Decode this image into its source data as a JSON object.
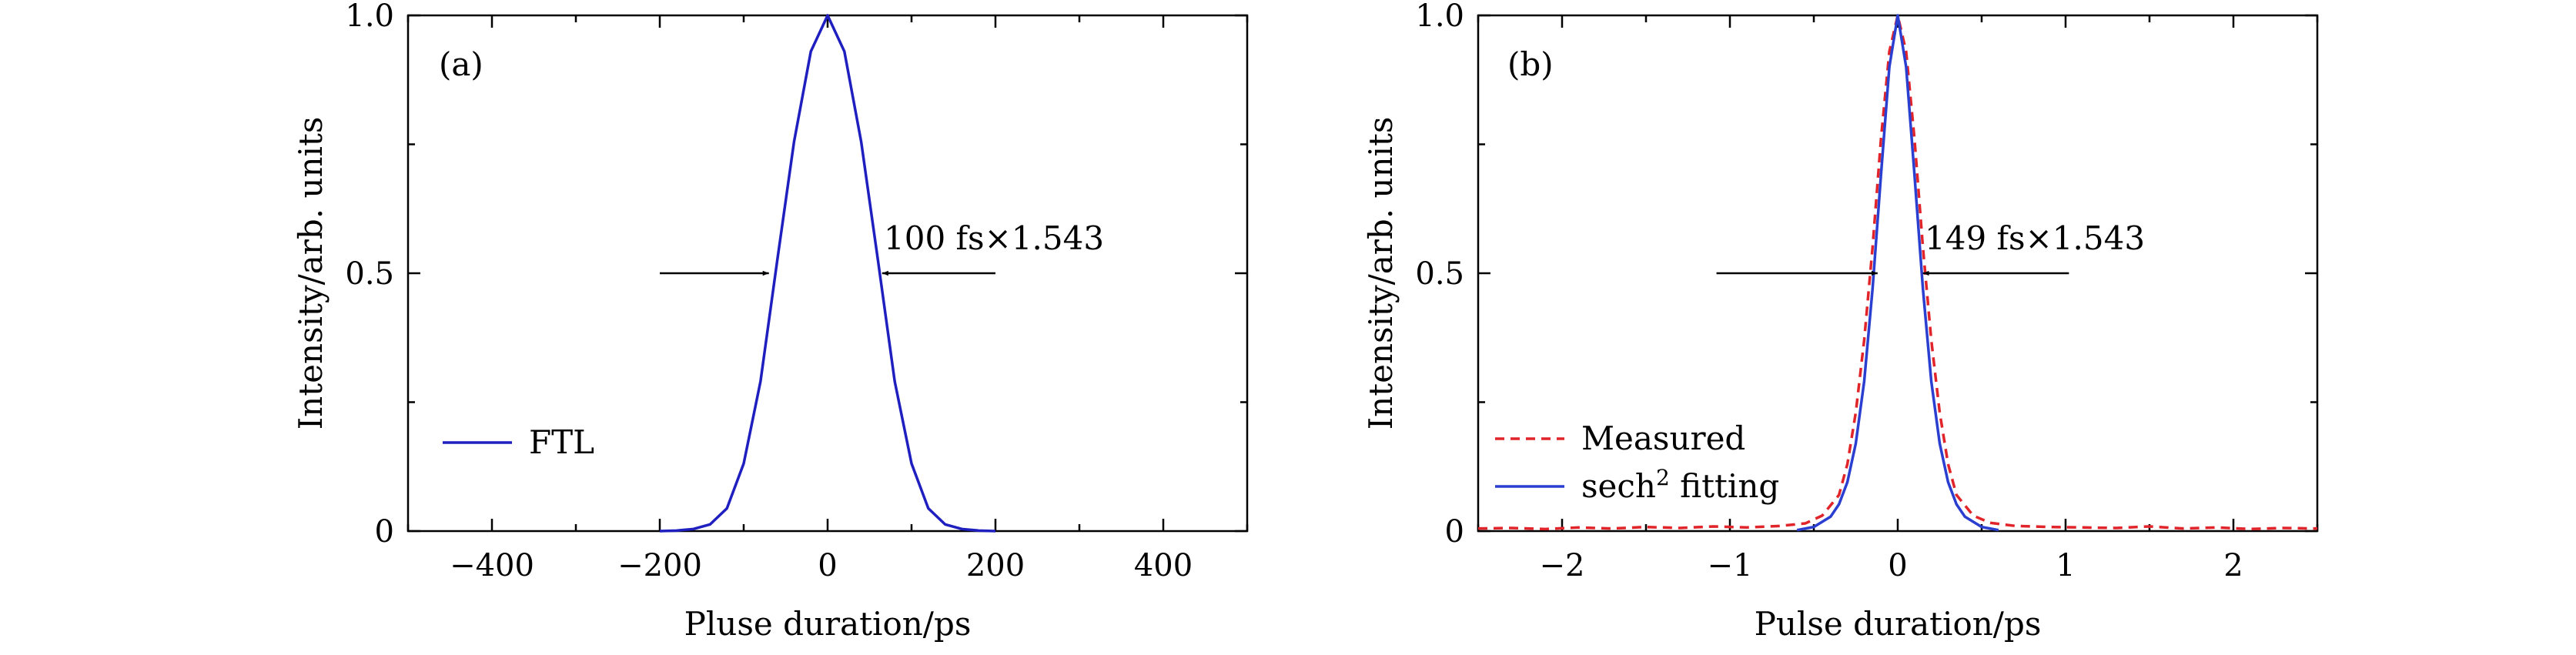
{
  "colors": {
    "axis": "#000000",
    "ftl": "#1f1fbf",
    "measured": "#e0242a",
    "fit": "#2a3fd0"
  },
  "chart_data": [
    {
      "type": "line",
      "panel_label": "(a)",
      "xlabel": "Pluse duration/ps",
      "ylabel": "Intensity/arb. units",
      "xlim": [
        -500,
        500
      ],
      "ylim": [
        0,
        1.0
      ],
      "xticks": [
        -400,
        -200,
        0,
        200,
        400
      ],
      "xtick_labels": [
        "−400",
        "−200",
        "0",
        "200",
        "400"
      ],
      "yticks": [
        0,
        0.5,
        1.0
      ],
      "ytick_labels": [
        "0",
        "0.5",
        "1.0"
      ],
      "annotation": {
        "text": "100 fs×1.543",
        "y": 0.5,
        "arrow_left_x": [
          -200,
          -70
        ],
        "arrow_right_x": [
          200,
          65
        ]
      },
      "legend": {
        "position": "lower-left",
        "entries": [
          "FTL"
        ]
      },
      "series": [
        {
          "name": "FTL",
          "style": "solid",
          "x": [
            -200,
            -180,
            -160,
            -140,
            -120,
            -100,
            -80,
            -60,
            -40,
            -20,
            0,
            20,
            40,
            60,
            80,
            100,
            120,
            140,
            160,
            180,
            200
          ],
          "y": [
            0.0,
            0.001,
            0.004,
            0.013,
            0.044,
            0.131,
            0.29,
            0.525,
            0.755,
            0.93,
            1.0,
            0.93,
            0.755,
            0.525,
            0.29,
            0.131,
            0.044,
            0.013,
            0.004,
            0.001,
            0.0
          ]
        }
      ]
    },
    {
      "type": "line",
      "panel_label": "(b)",
      "xlabel": "Pulse duration/ps",
      "ylabel": "Intensity/arb. units",
      "xlim": [
        -2.5,
        2.5
      ],
      "ylim": [
        0,
        1.0
      ],
      "xticks": [
        -2,
        -1,
        0,
        1,
        2
      ],
      "xtick_labels": [
        "−2",
        "−1",
        "0",
        "1",
        "2"
      ],
      "yticks": [
        0,
        0.5,
        1.0
      ],
      "ytick_labels": [
        "0",
        "0.5",
        "1.0"
      ],
      "annotation": {
        "text": "149 fs×1.543",
        "y": 0.5,
        "arrow_left_x": [
          -1.08,
          -0.12
        ],
        "arrow_right_x": [
          1.02,
          0.15
        ]
      },
      "legend": {
        "position": "lower-left",
        "entries": [
          "Measured",
          "sech",
          "2",
          " fitting"
        ]
      },
      "series": [
        {
          "name": "Measured",
          "style": "dashed",
          "x": [
            -2.5,
            -2.3,
            -2.1,
            -1.9,
            -1.7,
            -1.5,
            -1.3,
            -1.1,
            -0.9,
            -0.7,
            -0.55,
            -0.45,
            -0.35,
            -0.3,
            -0.25,
            -0.2,
            -0.15,
            -0.1,
            -0.05,
            0,
            0.05,
            0.1,
            0.15,
            0.2,
            0.25,
            0.3,
            0.35,
            0.45,
            0.55,
            0.7,
            0.9,
            1.1,
            1.3,
            1.5,
            1.7,
            1.9,
            2.1,
            2.3,
            2.5
          ],
          "y": [
            0.005,
            0.006,
            0.004,
            0.007,
            0.005,
            0.008,
            0.006,
            0.009,
            0.007,
            0.01,
            0.015,
            0.03,
            0.07,
            0.13,
            0.23,
            0.37,
            0.55,
            0.76,
            0.93,
            1.0,
            0.93,
            0.76,
            0.55,
            0.37,
            0.23,
            0.13,
            0.07,
            0.03,
            0.016,
            0.01,
            0.008,
            0.007,
            0.006,
            0.009,
            0.005,
            0.007,
            0.004,
            0.006,
            0.005
          ]
        },
        {
          "name": "sech2 fitting",
          "style": "solid",
          "x": [
            -0.6,
            -0.5,
            -0.4,
            -0.35,
            -0.3,
            -0.25,
            -0.2,
            -0.15,
            -0.1,
            -0.05,
            0,
            0.05,
            0.1,
            0.15,
            0.2,
            0.25,
            0.3,
            0.35,
            0.4,
            0.5,
            0.6
          ],
          "y": [
            0.002,
            0.008,
            0.028,
            0.052,
            0.095,
            0.17,
            0.29,
            0.47,
            0.69,
            0.9,
            1.0,
            0.9,
            0.69,
            0.47,
            0.29,
            0.17,
            0.095,
            0.052,
            0.028,
            0.008,
            0.002
          ]
        }
      ]
    }
  ]
}
